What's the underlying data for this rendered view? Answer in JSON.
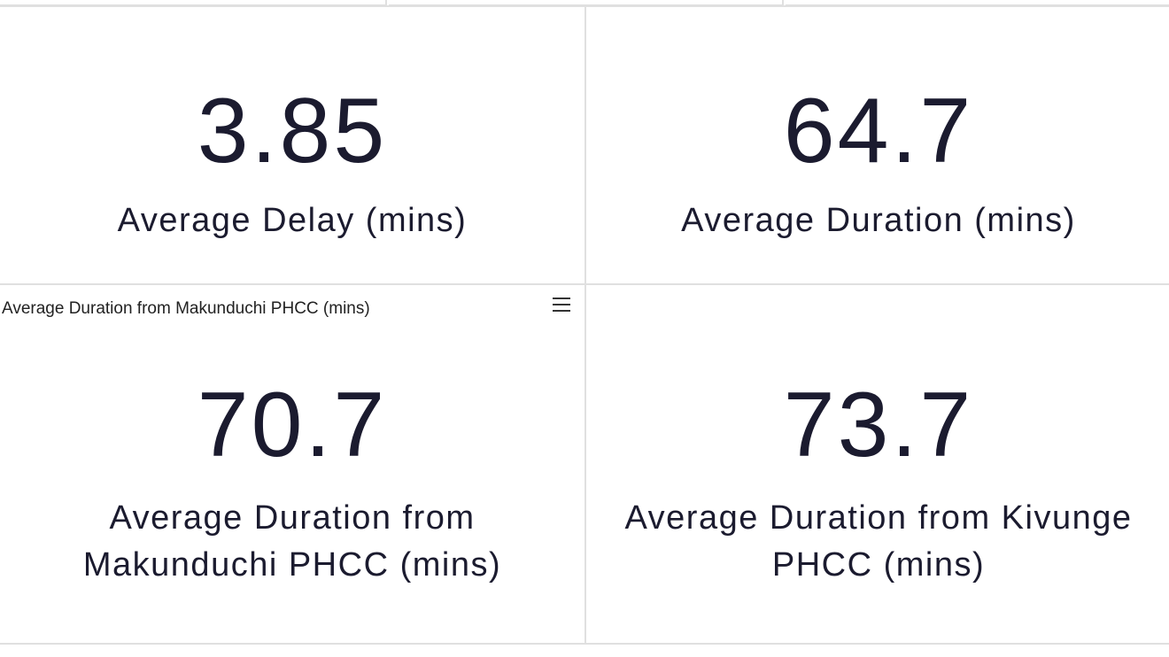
{
  "tiles": [
    {
      "value": 3.85,
      "label": "Average Delay (mins)"
    },
    {
      "value": 64.7,
      "label": "Average Duration (mins)"
    },
    {
      "header": "Average Duration from Makunduchi PHCC (mins)",
      "value": 70.7,
      "label": "Average Duration from Makunduchi PHCC (mins)"
    },
    {
      "value": 73.7,
      "label": "Average Duration from Kivunge PHCC (mins)"
    }
  ]
}
